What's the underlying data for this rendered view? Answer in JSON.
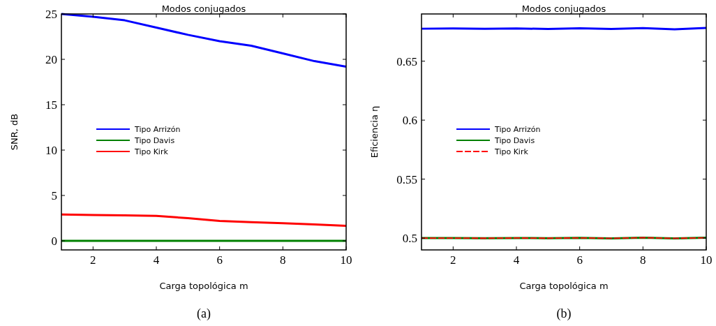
{
  "chart_data": [
    {
      "type": "line",
      "title": "Modos conjugados",
      "xlabel": "Carga topológica m",
      "ylabel": "SNR, dB",
      "annotations": [
        "(a)"
      ],
      "x": [
        1,
        2,
        3,
        4,
        5,
        6,
        7,
        8,
        9,
        10
      ],
      "xlim": [
        1,
        10
      ],
      "xticks": [
        2,
        4,
        6,
        8,
        10
      ],
      "ylim": [
        -1,
        25
      ],
      "yticks": [
        0,
        5,
        10,
        15,
        20,
        25
      ],
      "legend": "left",
      "grid": false,
      "series": [
        {
          "name": "Tipo Arrizón",
          "color": "#0000ff",
          "values": [
            25,
            24.7,
            24.3,
            23.5,
            22.7,
            22.0,
            21.5,
            20.65,
            19.8,
            19.2
          ]
        },
        {
          "name": "Tipo Davis",
          "color": "#008000",
          "values": [
            0,
            0,
            0,
            0,
            0,
            0,
            0,
            0,
            0,
            0
          ]
        },
        {
          "name": "Tipo Kirk",
          "color": "#ff0000",
          "values": [
            2.9,
            2.85,
            2.8,
            2.75,
            2.5,
            2.2,
            2.05,
            1.95,
            1.8,
            1.65
          ]
        }
      ]
    },
    {
      "type": "line",
      "title": "Modos conjugados",
      "xlabel": "Carga topológica m",
      "ylabel": "Eficiencia η",
      "annotations": [
        "(b)"
      ],
      "x": [
        1,
        2,
        3,
        4,
        5,
        6,
        7,
        8,
        9,
        10
      ],
      "xlim": [
        1,
        10
      ],
      "xticks": [
        2,
        4,
        6,
        8,
        10
      ],
      "ylim": [
        0.49,
        0.69
      ],
      "yticks": [
        0.5,
        0.55,
        0.6,
        0.65
      ],
      "legend": "left",
      "grid": false,
      "series": [
        {
          "name": "Tipo Arrizón",
          "color": "#0000ff",
          "values": [
            0.6775,
            0.6777,
            0.6774,
            0.6777,
            0.6773,
            0.6778,
            0.6773,
            0.678,
            0.677,
            0.6781
          ]
        },
        {
          "name": "Tipo Davis",
          "color": "#008000",
          "values": [
            0.5,
            0.5,
            0.4999,
            0.5001,
            0.4999,
            0.5002,
            0.4998,
            0.5004,
            0.4998,
            0.5003
          ]
        },
        {
          "name": "Tipo Kirk",
          "color": "#ff0000",
          "line_style": "dashed",
          "values": [
            0.5,
            0.5,
            0.4999,
            0.5001,
            0.4999,
            0.5002,
            0.4998,
            0.5004,
            0.4998,
            0.5003
          ]
        }
      ]
    }
  ]
}
